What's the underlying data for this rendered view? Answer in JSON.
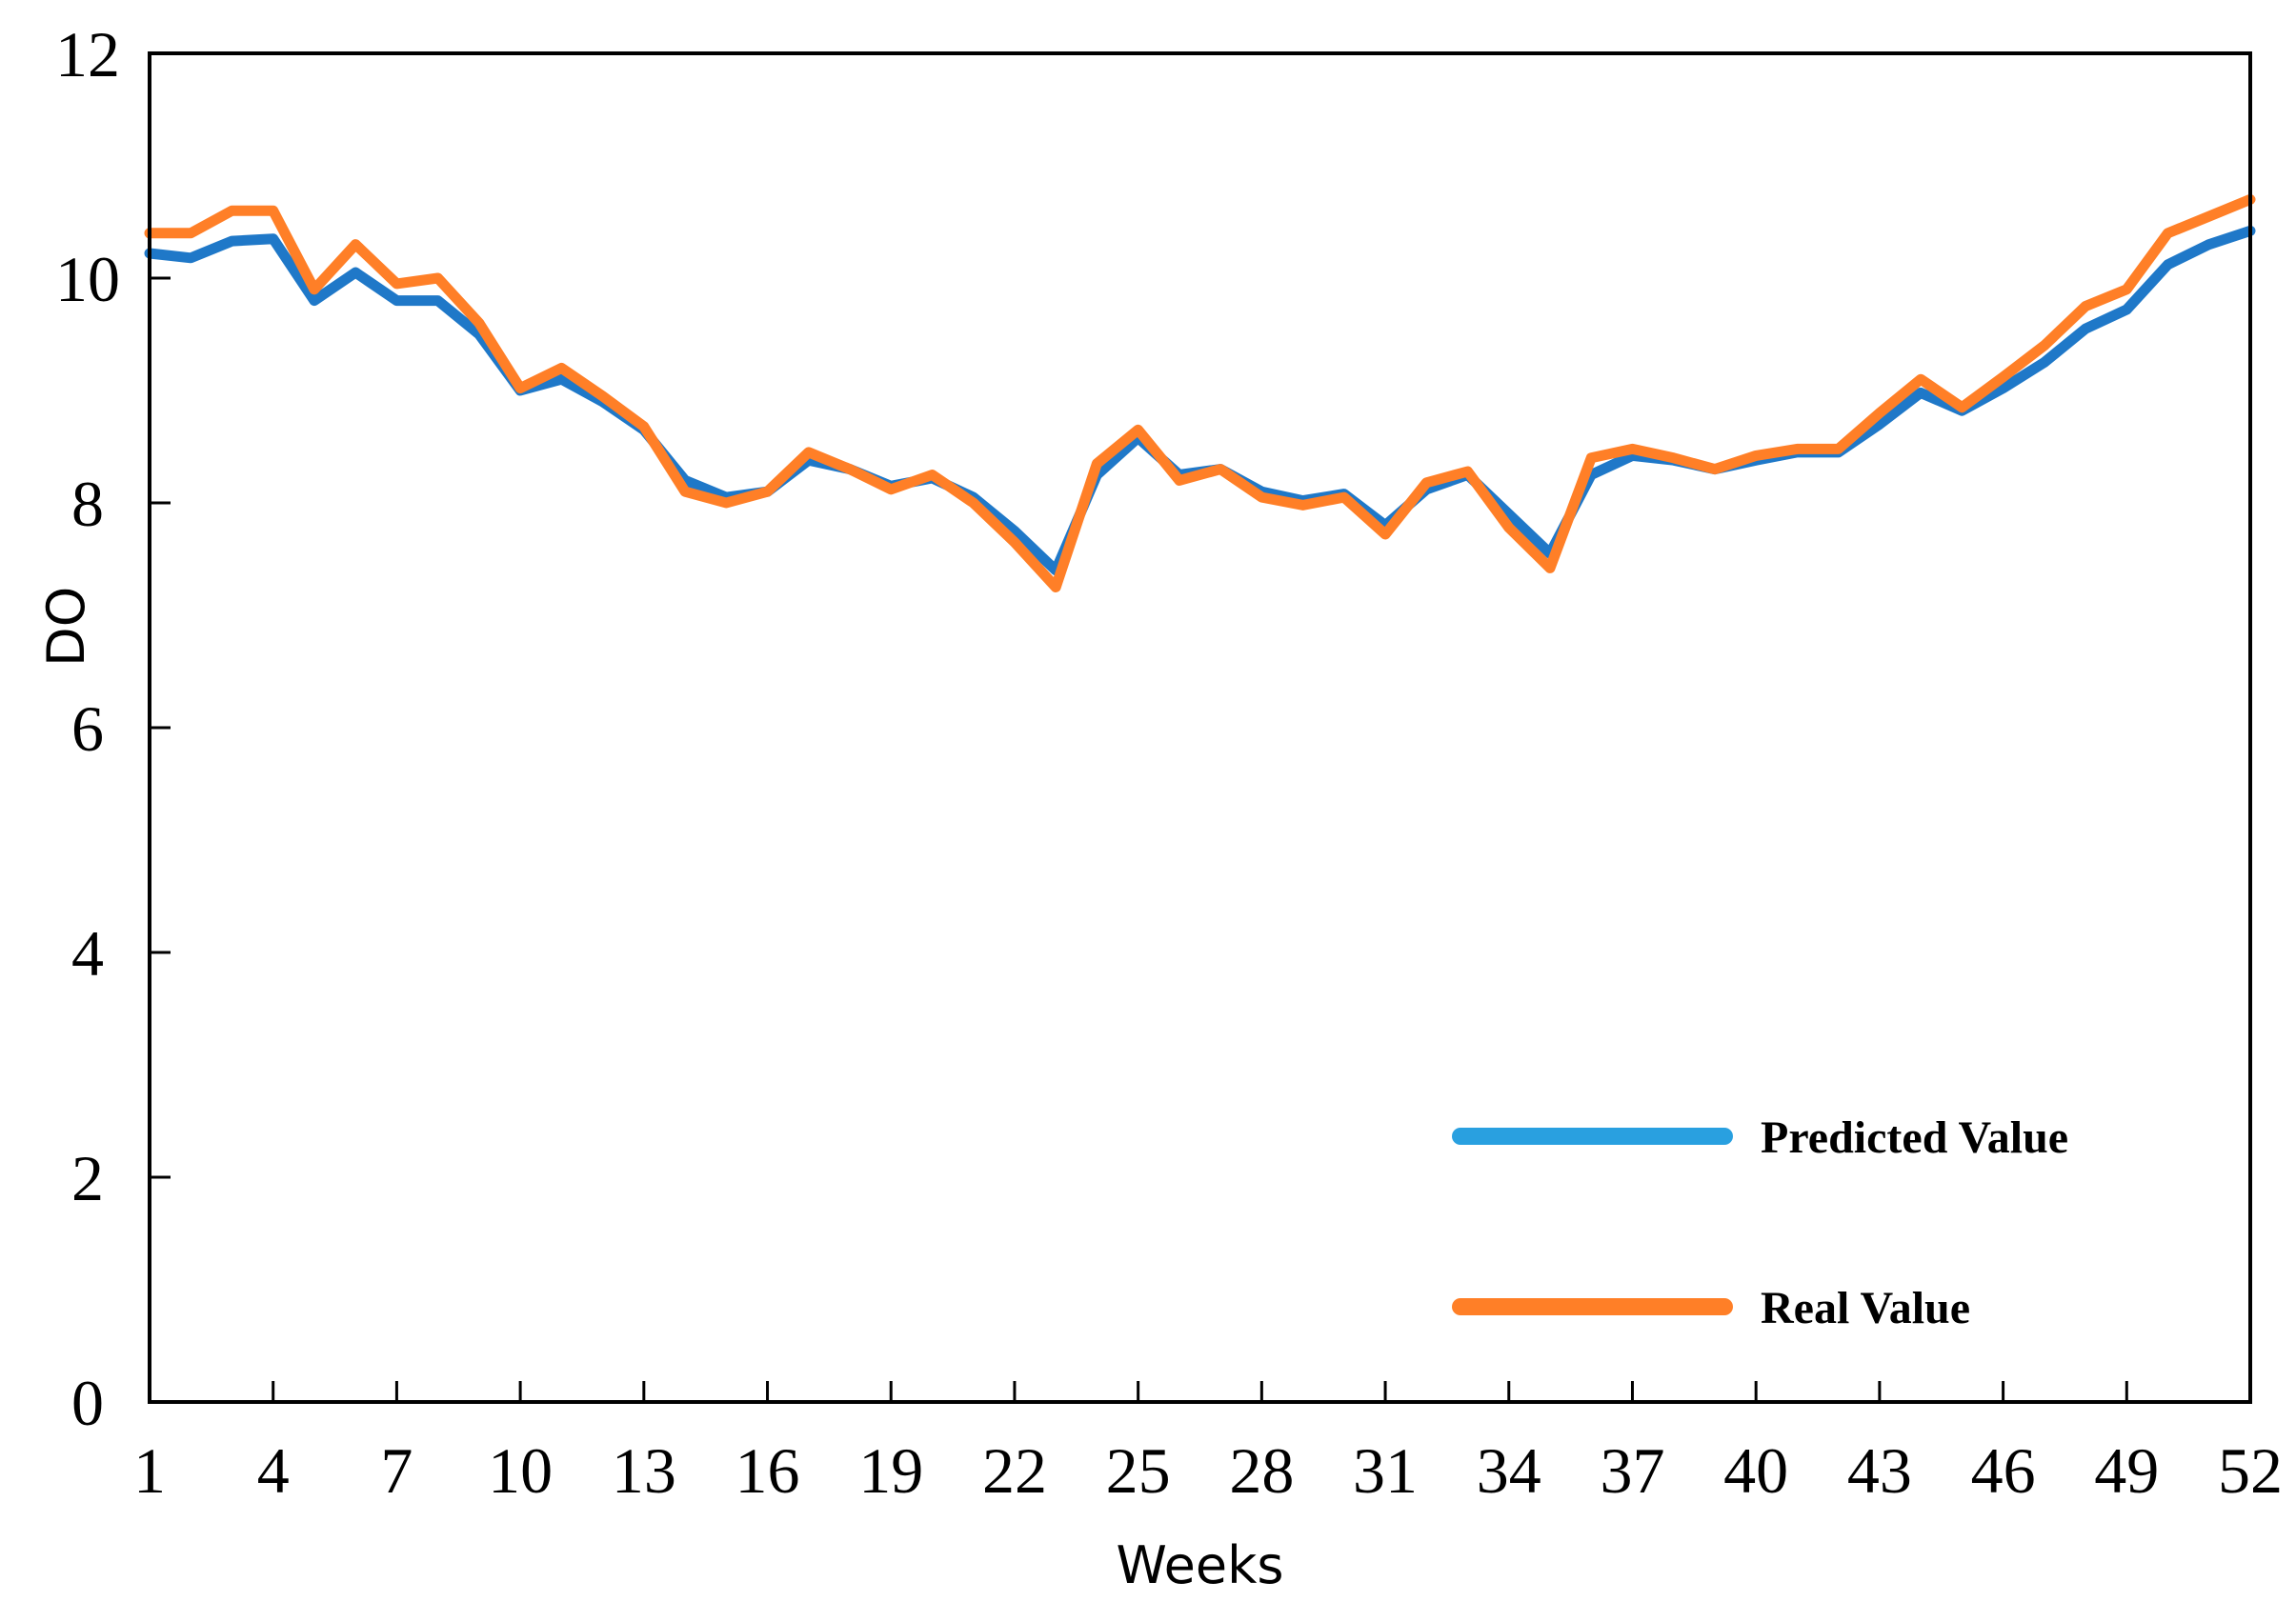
{
  "chart_data": {
    "type": "line",
    "title": "",
    "xlabel": "Weeks",
    "ylabel": "DO",
    "xlim": [
      1,
      52
    ],
    "ylim": [
      0,
      12
    ],
    "x_ticks": [
      1,
      4,
      7,
      10,
      13,
      16,
      19,
      22,
      25,
      28,
      31,
      34,
      37,
      40,
      43,
      46,
      49,
      52
    ],
    "y_ticks": [
      0,
      2,
      4,
      6,
      8,
      10,
      12
    ],
    "grid": false,
    "legend_position": "bottom-right",
    "x": [
      1,
      2,
      3,
      4,
      5,
      6,
      7,
      8,
      9,
      10,
      11,
      12,
      13,
      14,
      15,
      16,
      17,
      18,
      19,
      20,
      21,
      22,
      23,
      24,
      25,
      26,
      27,
      28,
      29,
      30,
      31,
      32,
      33,
      34,
      35,
      36,
      37,
      38,
      39,
      40,
      41,
      42,
      43,
      44,
      45,
      46,
      47,
      48,
      49,
      50,
      51,
      52
    ],
    "series": [
      {
        "name": "Predicted Value",
        "color": "#1f78c8",
        "values": [
          10.22,
          10.18,
          10.33,
          10.35,
          9.8,
          10.05,
          9.8,
          9.8,
          9.5,
          9.0,
          9.1,
          8.9,
          8.65,
          8.2,
          8.05,
          8.1,
          8.38,
          8.3,
          8.15,
          8.22,
          8.05,
          7.75,
          7.4,
          8.25,
          8.58,
          8.25,
          8.3,
          8.1,
          8.02,
          8.08,
          7.8,
          8.12,
          8.25,
          7.9,
          7.55,
          8.25,
          8.42,
          8.38,
          8.3,
          8.38,
          8.45,
          8.45,
          8.7,
          8.98,
          8.82,
          9.02,
          9.25,
          9.55,
          9.72,
          10.12,
          10.3,
          10.42
        ]
      },
      {
        "name": "Real Value",
        "color": "#ff7f27",
        "values": [
          10.4,
          10.4,
          10.6,
          10.6,
          9.9,
          10.3,
          9.95,
          10.0,
          9.6,
          9.02,
          9.2,
          8.95,
          8.68,
          8.1,
          8.0,
          8.1,
          8.45,
          8.3,
          8.12,
          8.25,
          8.0,
          7.65,
          7.25,
          8.35,
          8.65,
          8.2,
          8.3,
          8.05,
          7.98,
          8.05,
          7.72,
          8.18,
          8.28,
          7.78,
          7.42,
          8.4,
          8.48,
          8.4,
          8.3,
          8.42,
          8.48,
          8.48,
          8.8,
          9.1,
          8.85,
          9.12,
          9.4,
          9.75,
          9.9,
          10.4,
          10.55,
          10.7
        ]
      }
    ]
  }
}
